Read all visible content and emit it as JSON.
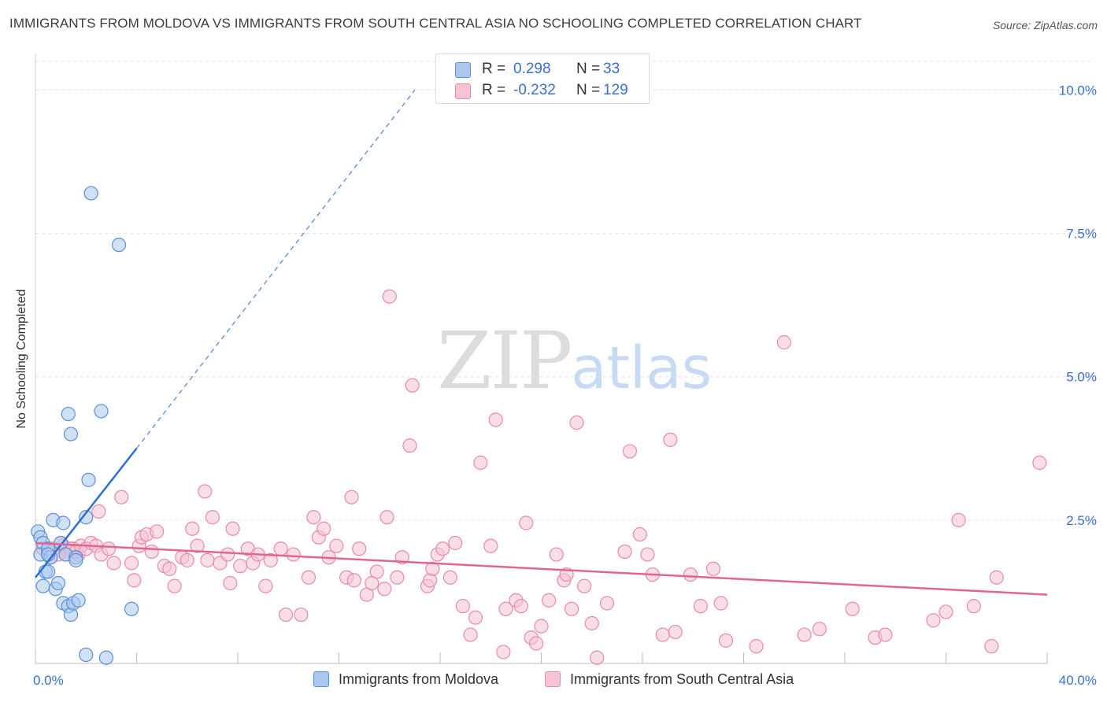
{
  "header": {
    "title": "IMMIGRANTS FROM MOLDOVA VS IMMIGRANTS FROM SOUTH CENTRAL ASIA NO SCHOOLING COMPLETED CORRELATION CHART",
    "source": "Source: ZipAtlas.com"
  },
  "legend": {
    "rows": [
      {
        "r_label": "R =",
        "r_value": "0.298",
        "n_label": "N =",
        "n_value": "33"
      },
      {
        "r_label": "R =",
        "r_value": "-0.232",
        "n_label": "N =",
        "n_value": "129"
      }
    ]
  },
  "bottom_legend": [
    "Immigrants from Moldova",
    "Immigrants from South Central Asia"
  ],
  "watermark": {
    "zip": "ZIP",
    "atlas": "atlas"
  },
  "colors": {
    "blue_fill": "#aac8ef",
    "blue_stroke": "#5a8fd6",
    "blue_line": "#2a6fd1",
    "pink_fill": "#f6c3d3",
    "pink_stroke": "#e88aa8",
    "pink_line": "#e06692",
    "tick_label": "#3b6fd1",
    "grid": "#e2e2e2"
  },
  "chart_data": {
    "type": "scatter",
    "title": "IMMIGRANTS FROM MOLDOVA VS IMMIGRANTS FROM SOUTH CENTRAL ASIA NO SCHOOLING COMPLETED CORRELATION CHART",
    "xlabel": "",
    "ylabel": "No Schooling Completed",
    "xlim": [
      0,
      40
    ],
    "ylim": [
      0,
      10.5
    ],
    "x_tick_labels": [
      "0.0%",
      "40.0%"
    ],
    "y_ticks": [
      2.5,
      5.0,
      7.5,
      10.0
    ],
    "y_tick_labels": [
      "2.5%",
      "5.0%",
      "7.5%",
      "10.0%"
    ],
    "grid": true,
    "legend_position": "top-center",
    "series": [
      {
        "name": "Immigrants from Moldova",
        "R": 0.298,
        "N": 33,
        "trend": {
          "x0": 0,
          "y0": 1.5,
          "x1": 4.0,
          "y1": 3.75,
          "dash_to_x": 15.0,
          "dash_to_y": 10.0
        },
        "points": [
          [
            0.1,
            2.3
          ],
          [
            0.2,
            2.2
          ],
          [
            0.3,
            2.1
          ],
          [
            0.2,
            1.9
          ],
          [
            0.4,
            1.6
          ],
          [
            0.5,
            2.0
          ],
          [
            0.6,
            1.85
          ],
          [
            0.5,
            1.6
          ],
          [
            0.3,
            1.35
          ],
          [
            0.7,
            2.5
          ],
          [
            0.8,
            1.3
          ],
          [
            0.9,
            1.4
          ],
          [
            1.0,
            2.1
          ],
          [
            1.1,
            2.45
          ],
          [
            1.2,
            1.9
          ],
          [
            1.1,
            1.05
          ],
          [
            1.3,
            1.0
          ],
          [
            1.4,
            0.85
          ],
          [
            1.5,
            1.05
          ],
          [
            1.6,
            1.85
          ],
          [
            1.7,
            1.1
          ],
          [
            1.3,
            4.35
          ],
          [
            1.4,
            4.0
          ],
          [
            2.0,
            2.55
          ],
          [
            2.1,
            3.2
          ],
          [
            2.6,
            4.4
          ],
          [
            2.2,
            8.2
          ],
          [
            3.3,
            7.3
          ],
          [
            3.8,
            0.95
          ],
          [
            2.0,
            0.15
          ],
          [
            2.8,
            0.1
          ],
          [
            1.6,
            1.8
          ],
          [
            0.5,
            1.9
          ]
        ]
      },
      {
        "name": "Immigrants from South Central Asia",
        "R": -0.232,
        "N": 129,
        "trend": {
          "x0": 0,
          "y0": 2.1,
          "x1": 40,
          "y1": 1.2
        },
        "points": [
          [
            0.3,
            2.0
          ],
          [
            0.5,
            1.95
          ],
          [
            0.7,
            2.0
          ],
          [
            0.9,
            1.9
          ],
          [
            1.1,
            2.05
          ],
          [
            1.3,
            1.95
          ],
          [
            1.5,
            2.0
          ],
          [
            1.7,
            1.9
          ],
          [
            0.6,
            1.85
          ],
          [
            1.0,
            2.1
          ],
          [
            1.2,
            1.9
          ],
          [
            1.4,
            2.0
          ],
          [
            1.6,
            1.95
          ],
          [
            1.8,
            2.05
          ],
          [
            2.0,
            2.0
          ],
          [
            2.2,
            2.1
          ],
          [
            2.4,
            2.05
          ],
          [
            2.5,
            2.65
          ],
          [
            2.6,
            1.9
          ],
          [
            2.9,
            2.0
          ],
          [
            3.1,
            1.75
          ],
          [
            3.4,
            2.9
          ],
          [
            3.8,
            1.75
          ],
          [
            3.9,
            1.45
          ],
          [
            4.1,
            2.05
          ],
          [
            4.2,
            2.2
          ],
          [
            4.4,
            2.25
          ],
          [
            4.6,
            1.95
          ],
          [
            4.8,
            2.3
          ],
          [
            5.1,
            1.7
          ],
          [
            5.3,
            1.65
          ],
          [
            5.5,
            1.35
          ],
          [
            5.8,
            1.85
          ],
          [
            6.0,
            1.8
          ],
          [
            6.2,
            2.35
          ],
          [
            6.4,
            2.05
          ],
          [
            6.7,
            3.0
          ],
          [
            6.8,
            1.8
          ],
          [
            7.0,
            2.55
          ],
          [
            7.3,
            1.75
          ],
          [
            7.6,
            1.9
          ],
          [
            7.7,
            1.4
          ],
          [
            7.8,
            2.35
          ],
          [
            8.1,
            1.7
          ],
          [
            8.4,
            2.0
          ],
          [
            8.6,
            1.75
          ],
          [
            8.8,
            1.9
          ],
          [
            9.1,
            1.35
          ],
          [
            9.3,
            1.8
          ],
          [
            9.7,
            2.0
          ],
          [
            9.9,
            0.85
          ],
          [
            10.2,
            1.9
          ],
          [
            10.5,
            0.85
          ],
          [
            10.8,
            1.5
          ],
          [
            11.0,
            2.55
          ],
          [
            11.2,
            2.2
          ],
          [
            11.4,
            2.35
          ],
          [
            11.6,
            1.85
          ],
          [
            11.9,
            2.05
          ],
          [
            12.3,
            1.5
          ],
          [
            12.5,
            2.9
          ],
          [
            12.6,
            1.45
          ],
          [
            12.8,
            2.0
          ],
          [
            13.1,
            1.2
          ],
          [
            13.3,
            1.4
          ],
          [
            13.5,
            1.6
          ],
          [
            13.8,
            1.3
          ],
          [
            14.0,
            6.4
          ],
          [
            13.9,
            2.55
          ],
          [
            14.3,
            1.5
          ],
          [
            14.5,
            1.85
          ],
          [
            14.8,
            3.8
          ],
          [
            14.9,
            4.85
          ],
          [
            15.5,
            1.35
          ],
          [
            15.6,
            1.45
          ],
          [
            15.7,
            1.65
          ],
          [
            15.9,
            1.9
          ],
          [
            16.1,
            2.0
          ],
          [
            16.4,
            1.5
          ],
          [
            16.6,
            2.1
          ],
          [
            16.9,
            1.0
          ],
          [
            17.2,
            0.5
          ],
          [
            17.4,
            0.8
          ],
          [
            17.6,
            3.5
          ],
          [
            18.0,
            2.05
          ],
          [
            18.2,
            4.25
          ],
          [
            18.5,
            0.2
          ],
          [
            18.6,
            0.95
          ],
          [
            19.0,
            1.1
          ],
          [
            19.2,
            1.0
          ],
          [
            19.4,
            2.45
          ],
          [
            19.6,
            0.45
          ],
          [
            19.8,
            0.35
          ],
          [
            20.0,
            0.65
          ],
          [
            20.3,
            1.1
          ],
          [
            20.6,
            1.9
          ],
          [
            20.9,
            1.45
          ],
          [
            21.0,
            1.55
          ],
          [
            21.2,
            0.95
          ],
          [
            21.4,
            4.2
          ],
          [
            21.7,
            1.35
          ],
          [
            22.0,
            0.7
          ],
          [
            22.2,
            0.1
          ],
          [
            22.6,
            1.05
          ],
          [
            23.3,
            1.95
          ],
          [
            23.5,
            3.7
          ],
          [
            23.9,
            2.25
          ],
          [
            24.2,
            1.9
          ],
          [
            24.4,
            1.55
          ],
          [
            24.8,
            0.5
          ],
          [
            25.1,
            3.9
          ],
          [
            25.3,
            0.55
          ],
          [
            25.9,
            1.55
          ],
          [
            26.3,
            1.0
          ],
          [
            26.8,
            1.65
          ],
          [
            27.1,
            1.05
          ],
          [
            27.3,
            0.4
          ],
          [
            28.5,
            0.3
          ],
          [
            29.6,
            5.6
          ],
          [
            30.4,
            0.5
          ],
          [
            31.0,
            0.6
          ],
          [
            32.3,
            0.95
          ],
          [
            33.2,
            0.45
          ],
          [
            33.6,
            0.5
          ],
          [
            35.5,
            0.75
          ],
          [
            36.0,
            0.9
          ],
          [
            36.5,
            2.5
          ],
          [
            37.1,
            1.0
          ],
          [
            37.8,
            0.3
          ],
          [
            38.0,
            1.5
          ],
          [
            39.7,
            3.5
          ]
        ]
      }
    ]
  }
}
